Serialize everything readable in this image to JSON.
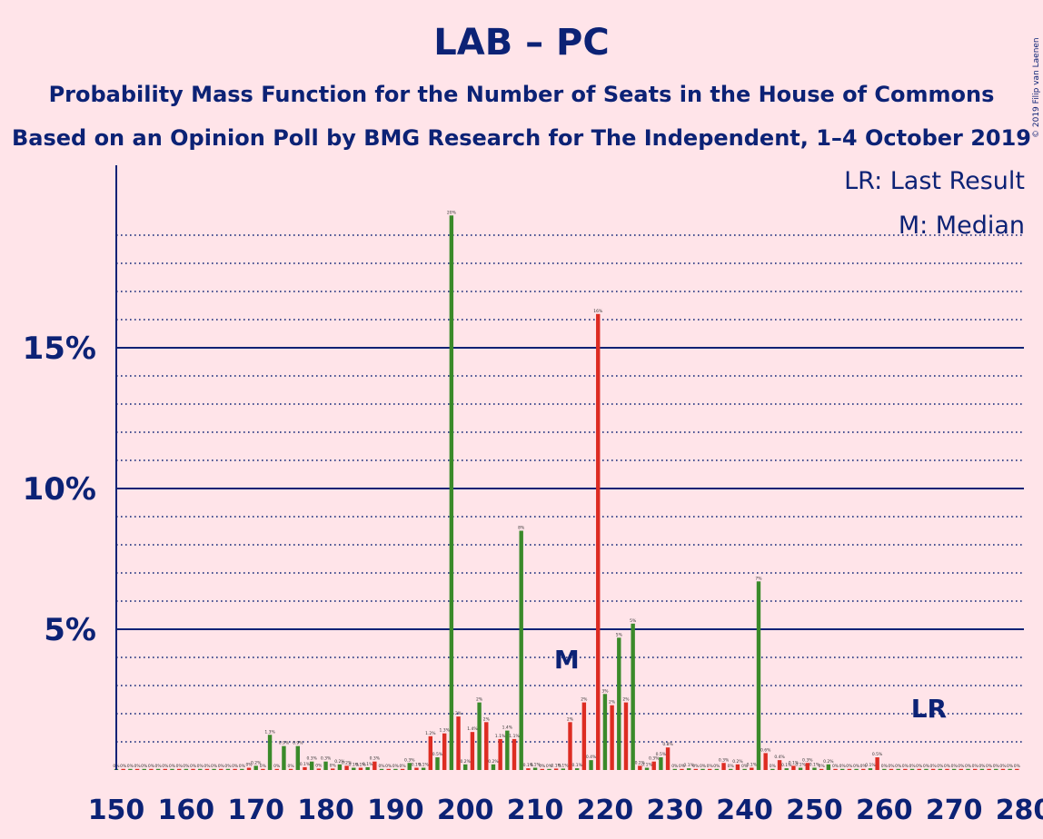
{
  "title": "LAB – PC",
  "subtitle1": "Probability Mass Function for the Number of Seats in the House of Commons",
  "subtitle2": "Based on an Opinion Poll by BMG Research for The Independent, 1–4 October 2019",
  "copyright": "© 2019 Filip van Laenen",
  "legend": {
    "lr": "LR: Last Result",
    "m": "M: Median"
  },
  "markers": {
    "median_label": "M",
    "median_seat": 214,
    "last_result_label": "LR",
    "last_result_seat": 266
  },
  "colors": {
    "background": "#FFE4E9",
    "axis": "#0C2275",
    "green": "#3A8A2A",
    "red": "#DD2C22",
    "label": "#0C2275"
  },
  "chart_data": {
    "type": "bar",
    "x_range": [
      150,
      280
    ],
    "ylim": [
      0,
      22
    ],
    "x_ticks": [
      150,
      160,
      170,
      180,
      190,
      200,
      210,
      220,
      230,
      240,
      250,
      260,
      270,
      280
    ],
    "y_ticks": [
      {
        "value": 5,
        "label": "5%"
      },
      {
        "value": 10,
        "label": "10%"
      },
      {
        "value": 15,
        "label": "15%"
      }
    ],
    "minor_gridlines": [
      1,
      2,
      3,
      4,
      6,
      7,
      8,
      9,
      11,
      12,
      13,
      14,
      16,
      17,
      18,
      19
    ],
    "bars": [
      {
        "x": 150,
        "v": 0.02,
        "label": "0%"
      },
      {
        "x": 151,
        "v": 0.02,
        "label": "0%"
      },
      {
        "x": 152,
        "v": 0.02,
        "label": "0%"
      },
      {
        "x": 153,
        "v": 0.02,
        "label": "0%"
      },
      {
        "x": 154,
        "v": 0.02,
        "label": "0%"
      },
      {
        "x": 155,
        "v": 0.02,
        "label": "0%"
      },
      {
        "x": 156,
        "v": 0.02,
        "label": "0%"
      },
      {
        "x": 157,
        "v": 0.02,
        "label": "0%"
      },
      {
        "x": 158,
        "v": 0.02,
        "label": "0%"
      },
      {
        "x": 159,
        "v": 0.02,
        "label": "0%"
      },
      {
        "x": 160,
        "v": 0.02,
        "label": "0%"
      },
      {
        "x": 161,
        "v": 0.02,
        "label": "0%"
      },
      {
        "x": 162,
        "v": 0.02,
        "label": "0%"
      },
      {
        "x": 163,
        "v": 0.02,
        "label": "0%"
      },
      {
        "x": 164,
        "v": 0.02,
        "label": "0%"
      },
      {
        "x": 165,
        "v": 0.02,
        "label": "0%"
      },
      {
        "x": 166,
        "v": 0.02,
        "label": "0%"
      },
      {
        "x": 167,
        "v": 0.02,
        "label": "0%"
      },
      {
        "x": 168,
        "v": 0.02,
        "label": "0%"
      },
      {
        "x": 169,
        "v": 0.08,
        "label": "0%"
      },
      {
        "x": 170,
        "v": 0.15,
        "label": "0.2%"
      },
      {
        "x": 171,
        "v": 0.03,
        "label": "0%"
      },
      {
        "x": 172,
        "v": 1.25,
        "label": "1.3%"
      },
      {
        "x": 173,
        "v": 0.03,
        "label": "0%"
      },
      {
        "x": 174,
        "v": 0.85,
        "label": "0.9%"
      },
      {
        "x": 175,
        "v": 0.03,
        "label": "0%"
      },
      {
        "x": 176,
        "v": 0.85,
        "label": "0.9%"
      },
      {
        "x": 177,
        "v": 0.1,
        "label": "0.1%"
      },
      {
        "x": 178,
        "v": 0.3,
        "label": "0.3%"
      },
      {
        "x": 179,
        "v": 0.05,
        "label": "0%"
      },
      {
        "x": 180,
        "v": 0.3,
        "label": "0.3%"
      },
      {
        "x": 181,
        "v": 0.05,
        "label": "0%"
      },
      {
        "x": 182,
        "v": 0.2,
        "label": "0.2%"
      },
      {
        "x": 183,
        "v": 0.15,
        "label": "0.2%"
      },
      {
        "x": 184,
        "v": 0.08,
        "label": "0.1%"
      },
      {
        "x": 185,
        "v": 0.08,
        "label": "0.1%"
      },
      {
        "x": 186,
        "v": 0.1,
        "label": "0.1%"
      },
      {
        "x": 187,
        "v": 0.3,
        "label": "0.3%"
      },
      {
        "x": 188,
        "v": 0.03,
        "label": "0%"
      },
      {
        "x": 189,
        "v": 0.03,
        "label": "0%"
      },
      {
        "x": 190,
        "v": 0.03,
        "label": "0%"
      },
      {
        "x": 191,
        "v": 0.03,
        "label": "0%"
      },
      {
        "x": 192,
        "v": 0.25,
        "label": "0.3%"
      },
      {
        "x": 193,
        "v": 0.08,
        "label": "0.1%"
      },
      {
        "x": 194,
        "v": 0.08,
        "label": "0.1%"
      },
      {
        "x": 195,
        "v": 1.2,
        "label": "1.2%"
      },
      {
        "x": 196,
        "v": 0.45,
        "label": "0.5%"
      },
      {
        "x": 197,
        "v": 1.3,
        "label": "1.3%"
      },
      {
        "x": 198,
        "v": 19.7,
        "label": "20%"
      },
      {
        "x": 199,
        "v": 1.9,
        "label": "2%"
      },
      {
        "x": 200,
        "v": 0.2,
        "label": "0.2%"
      },
      {
        "x": 201,
        "v": 1.35,
        "label": "1.4%"
      },
      {
        "x": 202,
        "v": 2.4,
        "label": "2%"
      },
      {
        "x": 203,
        "v": 1.7,
        "label": "2%"
      },
      {
        "x": 204,
        "v": 0.2,
        "label": "0.2%"
      },
      {
        "x": 205,
        "v": 1.1,
        "label": "1.1%"
      },
      {
        "x": 206,
        "v": 1.4,
        "label": "1.4%"
      },
      {
        "x": 207,
        "v": 1.1,
        "label": "1.1%"
      },
      {
        "x": 208,
        "v": 8.5,
        "label": "8%"
      },
      {
        "x": 209,
        "v": 0.06,
        "label": "0.1%"
      },
      {
        "x": 210,
        "v": 0.08,
        "label": "0.1%"
      },
      {
        "x": 211,
        "v": 0.03,
        "label": "0%"
      },
      {
        "x": 212,
        "v": 0.03,
        "label": "0%"
      },
      {
        "x": 213,
        "v": 0.05,
        "label": "0.1%"
      },
      {
        "x": 214,
        "v": 0.05,
        "label": "0.1%"
      },
      {
        "x": 215,
        "v": 1.7,
        "label": "2%"
      },
      {
        "x": 216,
        "v": 0.06,
        "label": "0.1%"
      },
      {
        "x": 217,
        "v": 2.4,
        "label": "2%"
      },
      {
        "x": 218,
        "v": 0.35,
        "label": "0.4%"
      },
      {
        "x": 219,
        "v": 16.2,
        "label": "16%"
      },
      {
        "x": 220,
        "v": 2.7,
        "label": "3%"
      },
      {
        "x": 221,
        "v": 2.3,
        "label": "2%"
      },
      {
        "x": 222,
        "v": 4.7,
        "label": "5%"
      },
      {
        "x": 223,
        "v": 2.4,
        "label": "2%"
      },
      {
        "x": 224,
        "v": 5.2,
        "label": "5%"
      },
      {
        "x": 225,
        "v": 0.15,
        "label": "0.2%"
      },
      {
        "x": 226,
        "v": 0.08,
        "label": "0.1%"
      },
      {
        "x": 227,
        "v": 0.3,
        "label": "0.3%"
      },
      {
        "x": 228,
        "v": 0.45,
        "label": "0.5%"
      },
      {
        "x": 229,
        "v": 0.8,
        "label": "0.8%"
      },
      {
        "x": 230,
        "v": 0.03,
        "label": "0%"
      },
      {
        "x": 231,
        "v": 0.03,
        "label": "0%"
      },
      {
        "x": 232,
        "v": 0.06,
        "label": "0.1%"
      },
      {
        "x": 233,
        "v": 0.03,
        "label": "0%"
      },
      {
        "x": 234,
        "v": 0.03,
        "label": "0%"
      },
      {
        "x": 235,
        "v": 0.03,
        "label": "0%"
      },
      {
        "x": 236,
        "v": 0.03,
        "label": "0%"
      },
      {
        "x": 237,
        "v": 0.25,
        "label": "0.3%"
      },
      {
        "x": 238,
        "v": 0.03,
        "label": "0%"
      },
      {
        "x": 239,
        "v": 0.2,
        "label": "0.2%"
      },
      {
        "x": 240,
        "v": 0.03,
        "label": "0%"
      },
      {
        "x": 241,
        "v": 0.08,
        "label": "0.1%"
      },
      {
        "x": 242,
        "v": 6.7,
        "label": "7%"
      },
      {
        "x": 243,
        "v": 0.6,
        "label": "0.6%"
      },
      {
        "x": 244,
        "v": 0.03,
        "label": "0%"
      },
      {
        "x": 245,
        "v": 0.35,
        "label": "0.4%"
      },
      {
        "x": 246,
        "v": 0.06,
        "label": "0.1%"
      },
      {
        "x": 247,
        "v": 0.15,
        "label": "0.1%"
      },
      {
        "x": 248,
        "v": 0.08,
        "label": "0.1%"
      },
      {
        "x": 249,
        "v": 0.25,
        "label": "0.3%"
      },
      {
        "x": 250,
        "v": 0.08,
        "label": "0.1%"
      },
      {
        "x": 251,
        "v": 0.03,
        "label": "0%"
      },
      {
        "x": 252,
        "v": 0.2,
        "label": "0.2%"
      },
      {
        "x": 253,
        "v": 0.03,
        "label": "0%"
      },
      {
        "x": 254,
        "v": 0.03,
        "label": "0%"
      },
      {
        "x": 255,
        "v": 0.03,
        "label": "0%"
      },
      {
        "x": 256,
        "v": 0.03,
        "label": "0%"
      },
      {
        "x": 257,
        "v": 0.03,
        "label": "0%"
      },
      {
        "x": 258,
        "v": 0.06,
        "label": "0.1%"
      },
      {
        "x": 259,
        "v": 0.45,
        "label": "0.5%"
      },
      {
        "x": 260,
        "v": 0.03,
        "label": "0%"
      },
      {
        "x": 261,
        "v": 0.02,
        "label": "0%"
      },
      {
        "x": 262,
        "v": 0.02,
        "label": "0%"
      },
      {
        "x": 263,
        "v": 0.02,
        "label": "0%"
      },
      {
        "x": 264,
        "v": 0.02,
        "label": "0%"
      },
      {
        "x": 265,
        "v": 0.02,
        "label": "0%"
      },
      {
        "x": 266,
        "v": 0.02,
        "label": "0%"
      },
      {
        "x": 267,
        "v": 0.02,
        "label": "0%"
      },
      {
        "x": 268,
        "v": 0.02,
        "label": "0%"
      },
      {
        "x": 269,
        "v": 0.02,
        "label": "0%"
      },
      {
        "x": 270,
        "v": 0.02,
        "label": "0%"
      },
      {
        "x": 271,
        "v": 0.02,
        "label": "0%"
      },
      {
        "x": 272,
        "v": 0.02,
        "label": "0%"
      },
      {
        "x": 273,
        "v": 0.02,
        "label": "0%"
      },
      {
        "x": 274,
        "v": 0.02,
        "label": "0%"
      },
      {
        "x": 275,
        "v": 0.02,
        "label": "0%"
      },
      {
        "x": 276,
        "v": 0.02,
        "label": "0%"
      },
      {
        "x": 277,
        "v": 0.02,
        "label": "0%"
      },
      {
        "x": 278,
        "v": 0.02,
        "label": "0%"
      },
      {
        "x": 279,
        "v": 0.02,
        "label": "0%"
      }
    ]
  }
}
